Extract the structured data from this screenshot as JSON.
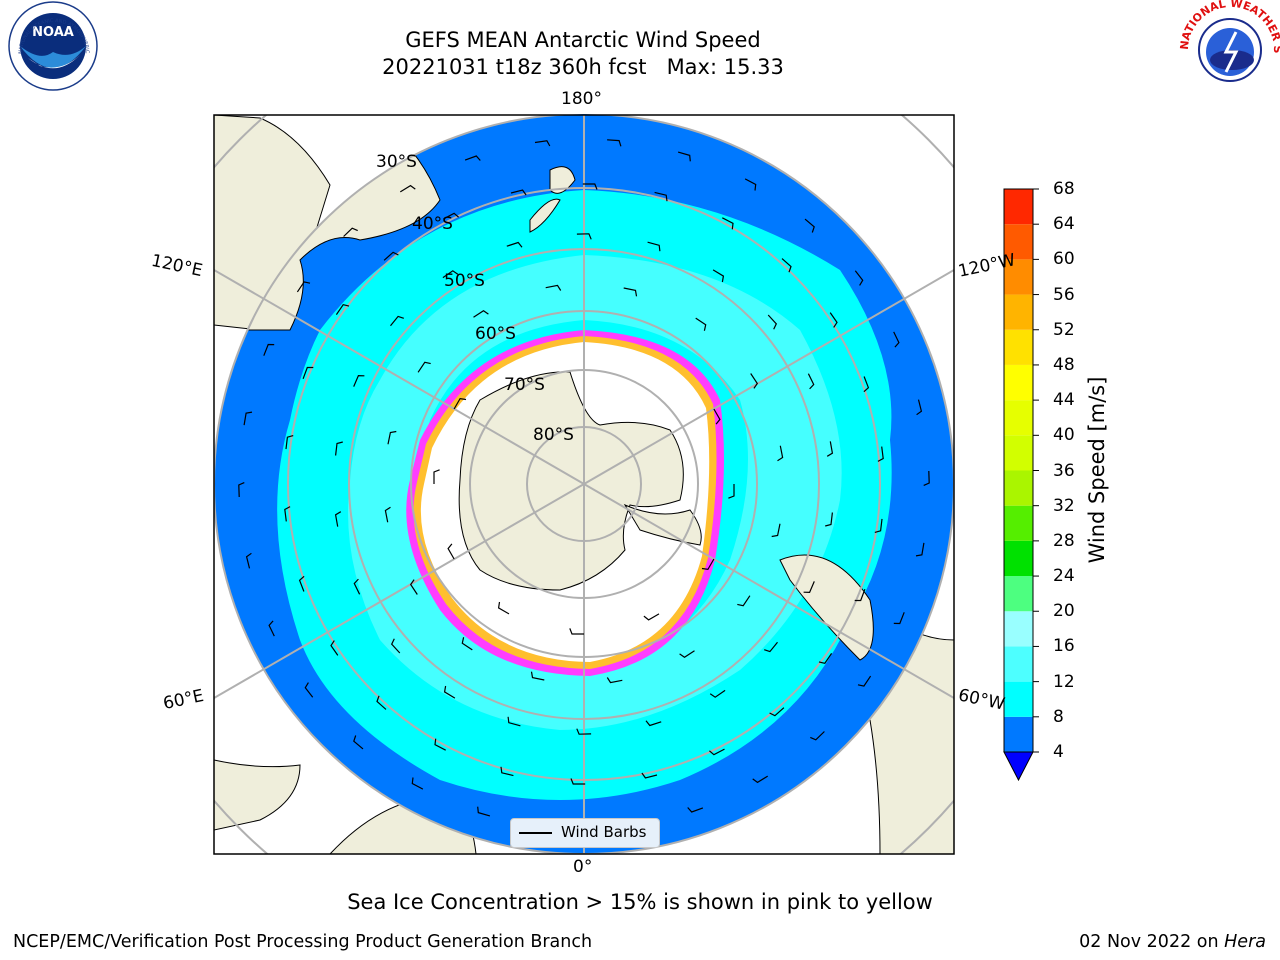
{
  "title": {
    "line1": "GEFS MEAN Antarctic Wind Speed",
    "line2": "20221031 t18z 360h fcst   Max: 15.33"
  },
  "map": {
    "projection": "south-polar-stereographic",
    "longitude_labels": {
      "top": "180°",
      "bottom": "0°",
      "upper_left": "120°E",
      "upper_right": "120°W",
      "lower_left": "60°E",
      "lower_right": "60°W"
    },
    "latitude_labels": [
      "30°S",
      "40°S",
      "50°S",
      "60°S",
      "70°S",
      "80°S"
    ],
    "colors": {
      "land": "#efeedb",
      "ocean_4_8": "#0079ff",
      "ocean_8_12": "#00ffff",
      "ocean_12_16": "#4dffff",
      "sea_ice_low": "#ff3dff",
      "sea_ice_high": "#ffbf2e",
      "grid": "#b0b0b0"
    }
  },
  "colorbar": {
    "label": "Wind Speed [m/s]",
    "ticks": [
      "4",
      "8",
      "12",
      "16",
      "20",
      "24",
      "28",
      "32",
      "36",
      "40",
      "44",
      "48",
      "52",
      "56",
      "60",
      "64",
      "68"
    ],
    "colors": [
      "#0079ff",
      "#00ffff",
      "#4dffff",
      "#99ffff",
      "#4dff80",
      "#00e100",
      "#55ee00",
      "#aaf500",
      "#d2ff00",
      "#e6ff00",
      "#ffff00",
      "#ffe100",
      "#ffb400",
      "#ff8c00",
      "#ff5a00",
      "#ff2800"
    ],
    "extend_color": "#0000ff"
  },
  "legend": {
    "label": "Wind Barbs"
  },
  "subtitle": "Sea Ice Concentration > 15% is shown in pink to yellow",
  "footer": {
    "left": "NCEP/EMC/Verification Post Processing Product Generation Branch",
    "date": "02 Nov 2022 on ",
    "host": "Hera"
  },
  "logos": {
    "noaa": "NOAA",
    "nws": "NATIONAL WEATHER SERVICE"
  }
}
